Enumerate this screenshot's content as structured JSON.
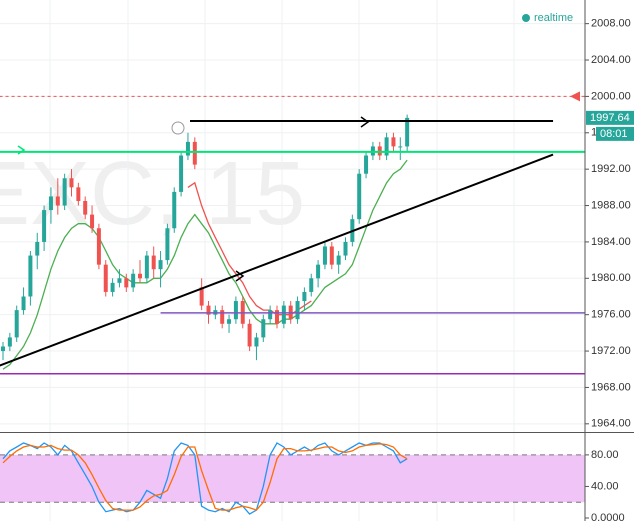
{
  "chart_data": [
    {
      "type": "candlestick",
      "title": "EXC, 15",
      "status": "realtime",
      "last_price": 1997.64,
      "countdown": "08:01",
      "up_color": "#26a69a",
      "down_color": "#ef5350",
      "open": [
        1972,
        1972.5,
        1973.5,
        1976.5,
        1978,
        1982.5,
        1984,
        1987.5,
        1989,
        1988,
        1991,
        1990,
        1988.5,
        1987,
        1985.5,
        1981.5,
        1978.5,
        1979.5,
        1980,
        1979,
        1980.5,
        1980,
        1982.5,
        1981,
        1982,
        1985.5,
        1989.5,
        1993.5,
        1995,
        1979,
        1977,
        1976,
        1976.5,
        1975,
        1975.5,
        1977.5,
        1975,
        1972.5,
        1973.5,
        1975.5,
        1976.5,
        1975,
        1977,
        1975.5,
        1977.5,
        1978.5,
        1980,
        1981.5,
        1983.5,
        1981.5,
        1982.5,
        1984,
        1986.5,
        1991.5,
        1993.5,
        1994.5,
        1993.5,
        1995.5,
        1994.5,
        1994.5
      ],
      "high": [
        1973,
        1974,
        1977,
        1979,
        1983,
        1985,
        1988,
        1990,
        1991,
        1991.5,
        1992,
        1990.5,
        1989,
        1988,
        1986,
        1982,
        1980,
        1981,
        1980.5,
        1981,
        1982,
        1983,
        1983.5,
        1983,
        1986,
        1990,
        1994,
        1996,
        1995.5,
        1980,
        1977.5,
        1977,
        1977,
        1976,
        1978,
        1978,
        1975.5,
        1974,
        1976,
        1977,
        1977,
        1977.5,
        1977.5,
        1978,
        1979,
        1980.5,
        1982,
        1984,
        1984,
        1983,
        1984.5,
        1987,
        1992,
        1994,
        1995,
        1995,
        1996,
        1996,
        1995.5,
        1998
      ],
      "low": [
        1971,
        1972,
        1973,
        1976,
        1977,
        1981,
        1983,
        1986,
        1987,
        1987.5,
        1989,
        1988,
        1986.5,
        1985,
        1981,
        1978,
        1978,
        1979,
        1978.5,
        1978.5,
        1979.5,
        1979.5,
        1980,
        1979,
        1981.5,
        1985,
        1989,
        1993,
        1992,
        1976.5,
        1975,
        1975.5,
        1974.5,
        1974,
        1975,
        1974.5,
        1972,
        1971,
        1973,
        1975,
        1974.5,
        1974.5,
        1975,
        1975,
        1976.5,
        1978,
        1979,
        1981,
        1981,
        1980.5,
        1982,
        1983.5,
        1986,
        1991,
        1993,
        1993,
        1993,
        1994,
        1993,
        1994
      ],
      "close": [
        1972.5,
        1973.5,
        1976.5,
        1978,
        1982.5,
        1984,
        1987.5,
        1989,
        1988,
        1991,
        1990,
        1988.5,
        1987,
        1985.5,
        1981.5,
        1978.5,
        1979.5,
        1980,
        1979,
        1980.5,
        1980,
        1982.5,
        1981,
        1982,
        1985.5,
        1989.5,
        1993.5,
        1995,
        1992.5,
        1977,
        1976,
        1976.5,
        1975,
        1975.5,
        1977.5,
        1975,
        1972.5,
        1973.5,
        1975.5,
        1976.5,
        1975,
        1977,
        1975.5,
        1977.5,
        1978.5,
        1980,
        1981.5,
        1983.5,
        1981.5,
        1982.5,
        1984,
        1986.5,
        1991.5,
        1993.5,
        1994.5,
        1993.5,
        1995.5,
        1994.5,
        1994.5,
        1997.64
      ],
      "series": [
        {
          "color": "#4caf50",
          "values": [
            1970,
            1970.5,
            1971.5,
            1972.5,
            1974,
            1976,
            1978.5,
            1981,
            1983,
            1984.5,
            1985.5,
            1986,
            1986,
            1985.5,
            1984.5,
            1983,
            1981.5,
            1980.5,
            1980,
            1979.5,
            1979.5,
            1979.5,
            1980,
            1980,
            1981,
            1982.5,
            1984.5,
            1986,
            1987,
            1986,
            1985,
            1983.5,
            1982,
            1980.5,
            1979.5,
            1978,
            1976.5,
            1975.5,
            1975,
            1975,
            1975,
            1975.5,
            1975.5,
            1976,
            1976.5,
            1977,
            1978,
            1979,
            1979.5,
            1980,
            1980.5,
            1981.5,
            1983.5,
            1985.5,
            1987.5,
            1989,
            1990.5,
            1991.5,
            1992,
            1993
          ]
        },
        {
          "color": "#ef5350",
          "values": [
            null,
            null,
            null,
            null,
            null,
            null,
            null,
            null,
            null,
            null,
            null,
            null,
            null,
            null,
            null,
            null,
            null,
            null,
            null,
            null,
            null,
            null,
            null,
            null,
            null,
            null,
            null,
            1990,
            1990.5,
            1988,
            1986,
            1984.5,
            1983,
            1981.5,
            1980.5,
            1979.5,
            1978,
            1977,
            1976.5,
            1976.5,
            1976,
            1976,
            1976,
            1976.5,
            1977,
            1977.5,
            null,
            null,
            null,
            null,
            null,
            null,
            null,
            null,
            null,
            null,
            null,
            null,
            null,
            null
          ]
        }
      ],
      "lines": [
        {
          "points": [
            [
              -0.5,
              2000
            ],
            [
              85,
              2000
            ]
          ],
          "color": "#ef5350",
          "width": 1,
          "dashed": true
        },
        {
          "points": [
            [
              -0.5,
              1993.9
            ],
            [
              85,
              1993.9
            ]
          ],
          "color": "#00e676",
          "width": 2,
          "dashed": false
        },
        {
          "points": [
            [
              27.3,
              1997.3
            ],
            [
              80.3,
              1997.3
            ]
          ],
          "color": "#000000",
          "width": 2,
          "dashed": false
        },
        {
          "points": [
            [
              -0.5,
              1970.4
            ],
            [
              80.3,
              1993.6
            ]
          ],
          "color": "#000000",
          "width": 2,
          "dashed": false
        },
        {
          "points": [
            [
              23,
              1976.2
            ],
            [
              85,
              1976.2
            ]
          ],
          "color": "#7e57c2",
          "width": 1.5,
          "dashed": false
        },
        {
          "points": [
            [
              -0.5,
              1969.5
            ],
            [
              85,
              1969.5
            ]
          ],
          "color": "#9c27b0",
          "width": 1.5,
          "dashed": false
        }
      ],
      "ylim": [
        1963.1,
        2010.6
      ],
      "yticks": [
        {
          "value": 1964,
          "label": "1964.00"
        },
        {
          "value": 1968,
          "label": "1968.00"
        },
        {
          "value": 1972,
          "label": "1972.00"
        },
        {
          "value": 1976,
          "label": "1976.00"
        },
        {
          "value": 1980,
          "label": "1980.00"
        },
        {
          "value": 1984,
          "label": "1984.00"
        },
        {
          "value": 1988,
          "label": "1988.00"
        },
        {
          "value": 1992,
          "label": "1992.00"
        },
        {
          "value": 1996,
          "label": "1996.00"
        },
        {
          "value": 2000,
          "label": "2000.00"
        },
        {
          "value": 2004,
          "label": "2004.00"
        },
        {
          "value": 2008,
          "label": "2008.00"
        }
      ],
      "grid": true
    },
    {
      "type": "line",
      "series": [
        {
          "color": "#2196f3",
          "values": [
            75,
            85,
            90,
            95,
            92,
            88,
            95,
            90,
            80,
            92,
            85,
            70,
            55,
            40,
            20,
            8,
            10,
            12,
            8,
            10,
            20,
            35,
            30,
            25,
            50,
            85,
            95,
            92,
            80,
            15,
            10,
            8,
            12,
            8,
            20,
            15,
            5,
            10,
            40,
            80,
            95,
            90,
            80,
            85,
            90,
            85,
            92,
            95,
            85,
            80,
            85,
            90,
            95,
            92,
            95,
            95,
            90,
            85,
            70,
            75
          ]
        },
        {
          "color": "#ff6d00",
          "values": [
            70,
            78,
            85,
            90,
            92,
            90,
            90,
            92,
            88,
            86,
            86,
            80,
            70,
            55,
            38,
            22,
            12,
            10,
            10,
            10,
            14,
            22,
            28,
            30,
            35,
            55,
            78,
            90,
            90,
            60,
            35,
            12,
            10,
            10,
            13,
            15,
            13,
            10,
            20,
            45,
            75,
            88,
            88,
            85,
            85,
            86,
            88,
            90,
            90,
            85,
            83,
            85,
            90,
            92,
            93,
            94,
            93,
            90,
            80,
            75
          ]
        }
      ],
      "band": [
        20,
        80
      ],
      "band_color": "#f0c4f7",
      "ylim": [
        0,
        109
      ],
      "yticks": [
        {
          "value": 80,
          "label": "80.00"
        },
        {
          "value": 40,
          "label": "40.00"
        },
        {
          "value": 0,
          "label": "0.0000"
        }
      ]
    }
  ]
}
